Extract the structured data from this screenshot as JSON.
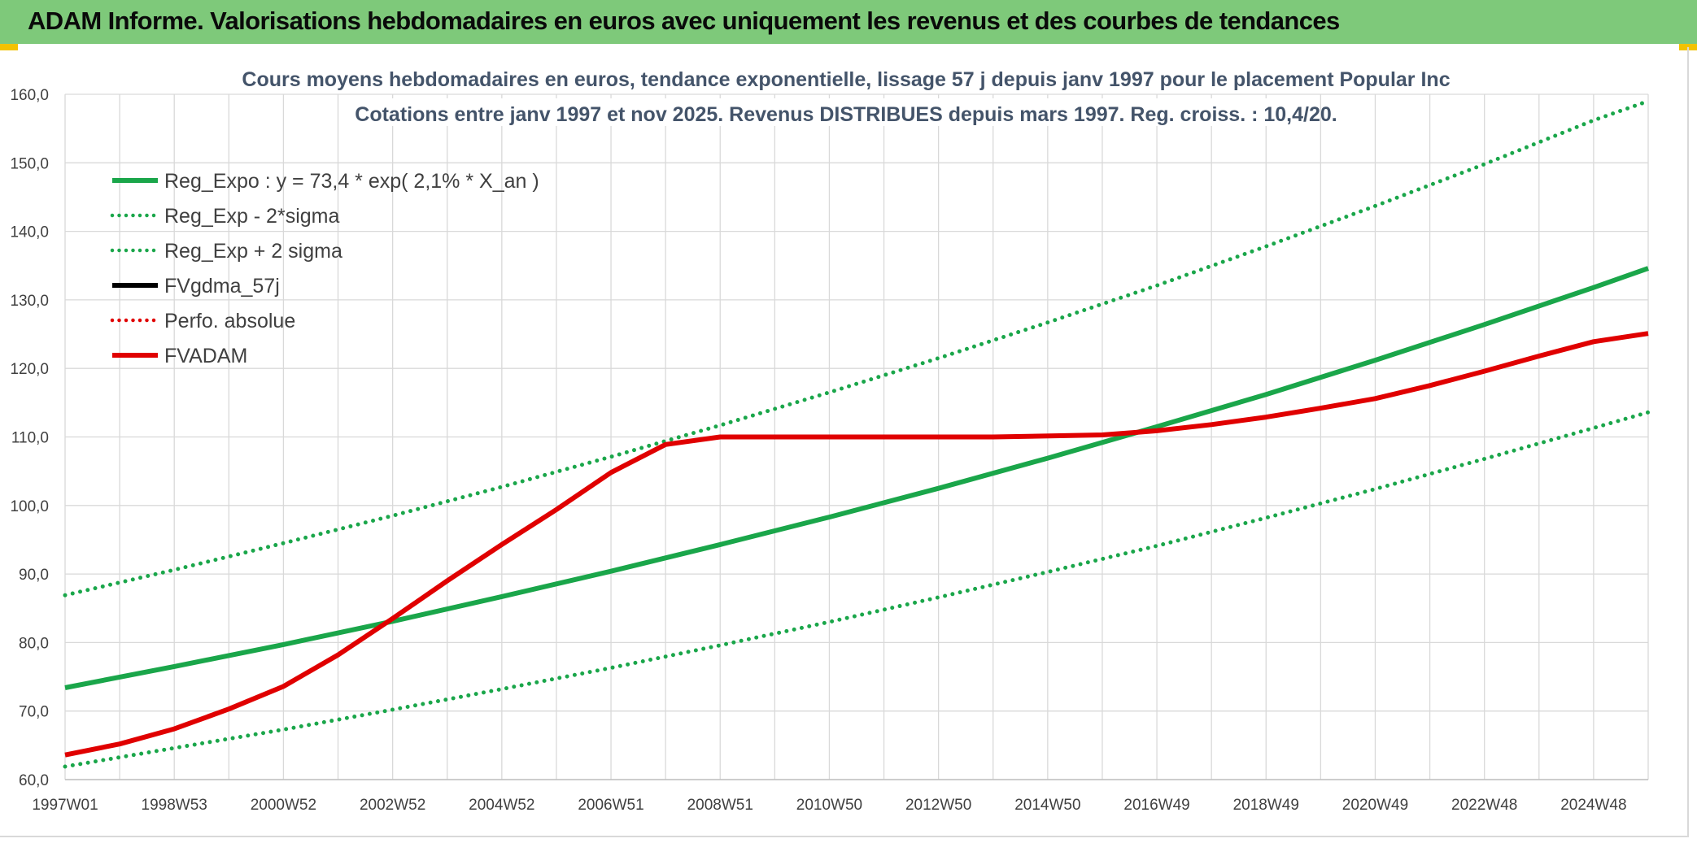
{
  "header": {
    "title": "ADAM Informe. Valorisations hebdomadaires en euros avec uniquement les revenus et des courbes de tendances"
  },
  "chart_data": {
    "type": "line",
    "title": "Cours moyens hebdomadaires en euros, tendance exponentielle, lissage 57 j depuis janv 1997 pour le placement Popular Inc",
    "subtitle": "Cotations entre janv 1997 et nov 2025. Revenus DISTRIBUES depuis mars 1997. Reg. croiss. : 10,4/20.",
    "xlabel": "",
    "ylabel": "",
    "x_tick_labels": [
      "1997W01",
      "1998W53",
      "2000W52",
      "2002W52",
      "2004W52",
      "2006W51",
      "2008W51",
      "2010W50",
      "2012W50",
      "2014W50",
      "2016W49",
      "2018W49",
      "2020W49",
      "2022W48",
      "2024W48"
    ],
    "x_tick_years": [
      1997.0,
      1999.0,
      2001.0,
      2003.0,
      2005.0,
      2007.0,
      2009.0,
      2011.0,
      2013.0,
      2015.0,
      2017.0,
      2019.0,
      2021.0,
      2023.0,
      2025.0
    ],
    "xlim": [
      1997.0,
      2026.0
    ],
    "ylim": [
      60,
      160
    ],
    "y_ticks": [
      "60,0",
      "70,0",
      "80,0",
      "90,0",
      "100,0",
      "110,0",
      "120,0",
      "130,0",
      "140,0",
      "150,0",
      "160,0"
    ],
    "y_tick_values": [
      60,
      70,
      80,
      90,
      100,
      110,
      120,
      130,
      140,
      150,
      160
    ],
    "grid": true,
    "legend_position": "top-left",
    "series": [
      {
        "name": "Reg_Expo : y = 73,4 * exp( 2,1% *  X_an )",
        "color": "#1aa64a",
        "style": "solid",
        "x": [
          1997,
          1999,
          2001,
          2003,
          2005,
          2007,
          2009,
          2011,
          2013,
          2015,
          2017,
          2019,
          2021,
          2023,
          2025,
          2026
        ],
        "y": [
          73.4,
          76.5,
          79.7,
          83.1,
          86.7,
          90.4,
          94.3,
          98.3,
          102.5,
          106.9,
          111.5,
          116.2,
          121.2,
          126.4,
          131.8,
          134.6
        ]
      },
      {
        "name": "Reg_Exp - 2*sigma",
        "color": "#1aa64a",
        "style": "dotted",
        "x": [
          1997,
          1999,
          2001,
          2003,
          2005,
          2007,
          2009,
          2011,
          2013,
          2015,
          2017,
          2019,
          2021,
          2023,
          2025,
          2026
        ],
        "y": [
          61.9,
          64.6,
          67.3,
          70.2,
          73.2,
          76.3,
          79.6,
          83.0,
          86.6,
          90.3,
          94.1,
          98.2,
          102.4,
          106.8,
          111.3,
          113.6
        ]
      },
      {
        "name": "Reg_Exp + 2 sigma",
        "color": "#1aa64a",
        "style": "dotted",
        "x": [
          1997,
          1999,
          2001,
          2003,
          2005,
          2007,
          2009,
          2011,
          2013,
          2015,
          2017,
          2019,
          2021,
          2023,
          2025,
          2026
        ],
        "y": [
          86.9,
          90.6,
          94.5,
          98.5,
          102.7,
          107.1,
          111.7,
          116.5,
          121.5,
          126.7,
          132.1,
          137.8,
          143.7,
          149.8,
          156.2,
          159.0
        ]
      },
      {
        "name": "FVgdma_57j",
        "color": "#000000",
        "style": "solid",
        "x": [],
        "y": []
      },
      {
        "name": "Perfo. absolue",
        "color": "#e00000",
        "style": "dotted",
        "x": [],
        "y": []
      },
      {
        "name": "FVADAM",
        "color": "#e00000",
        "style": "solid",
        "x": [
          1997,
          1998,
          1999,
          2000,
          2001,
          2002,
          2003,
          2004,
          2005,
          2006,
          2007,
          2008,
          2009,
          2010,
          2012,
          2014,
          2016,
          2017,
          2018,
          2019,
          2020,
          2021,
          2022,
          2023,
          2024,
          2025,
          2026
        ],
        "y": [
          63.6,
          65.2,
          67.4,
          70.3,
          73.6,
          78.2,
          83.5,
          89.0,
          94.3,
          99.4,
          104.8,
          108.9,
          110.0,
          110.0,
          110.0,
          110.0,
          110.3,
          110.9,
          111.8,
          112.9,
          114.2,
          115.6,
          117.5,
          119.6,
          121.8,
          123.9,
          125.1
        ]
      }
    ]
  }
}
